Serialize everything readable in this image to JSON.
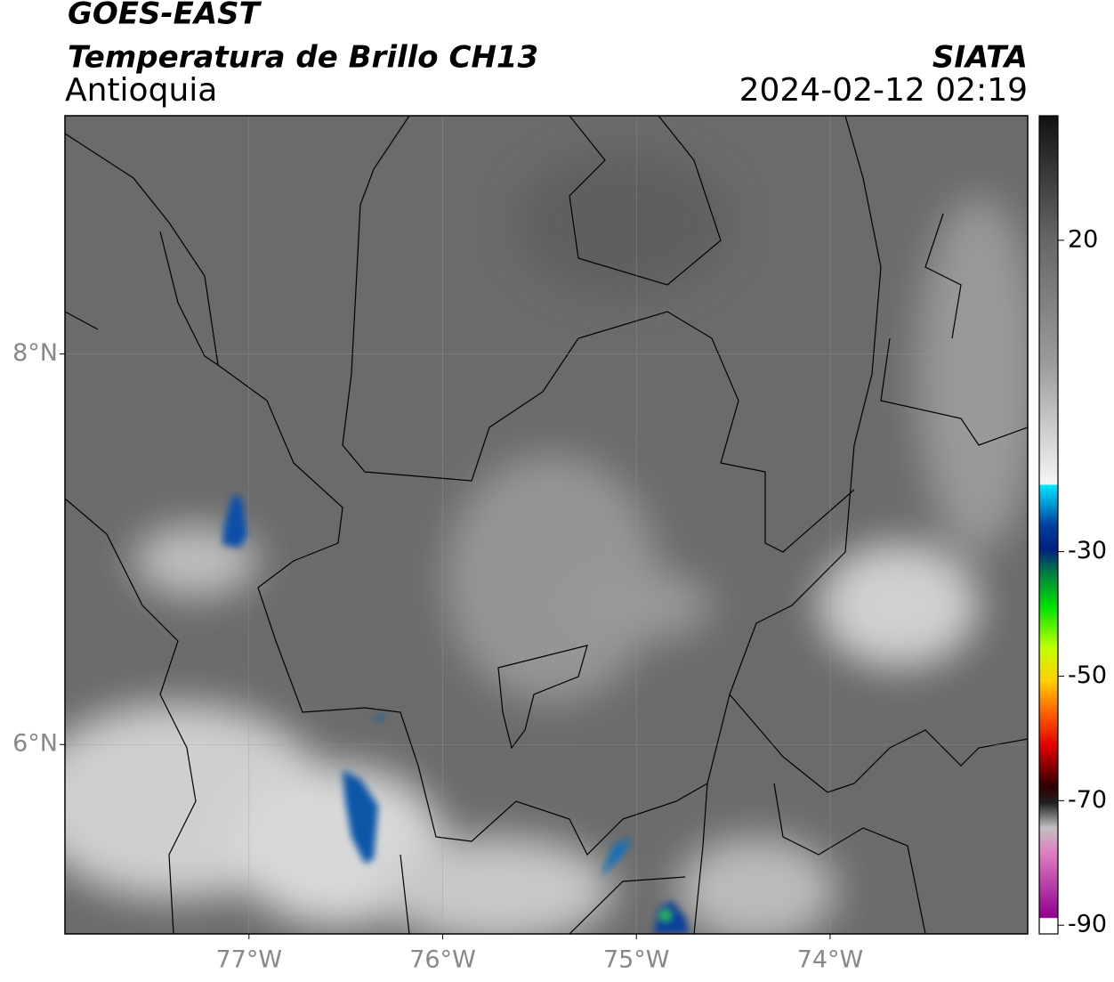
{
  "header": {
    "satellite": "GOES-EAST",
    "product": "Temperatura de Brillo CH13",
    "region": "Antioquia",
    "agency": "SIATA",
    "timestamp": "2024-02-12 02:19"
  },
  "map": {
    "xlim": [
      -77.95,
      -72.98
    ],
    "ylim": [
      5.03,
      9.22
    ],
    "xticks": [
      {
        "value": -77,
        "label": "77°W"
      },
      {
        "value": -76,
        "label": "76°W"
      },
      {
        "value": -75,
        "label": "75°W"
      },
      {
        "value": -74,
        "label": "74°W"
      }
    ],
    "yticks": [
      {
        "value": 8,
        "label": "8°N"
      },
      {
        "value": 6,
        "label": "6°N"
      }
    ],
    "grid": true
  },
  "colorbar": {
    "lim": [
      -91.4,
      40
    ],
    "ticks": [
      20,
      -30,
      -50,
      -70,
      -90
    ]
  }
}
